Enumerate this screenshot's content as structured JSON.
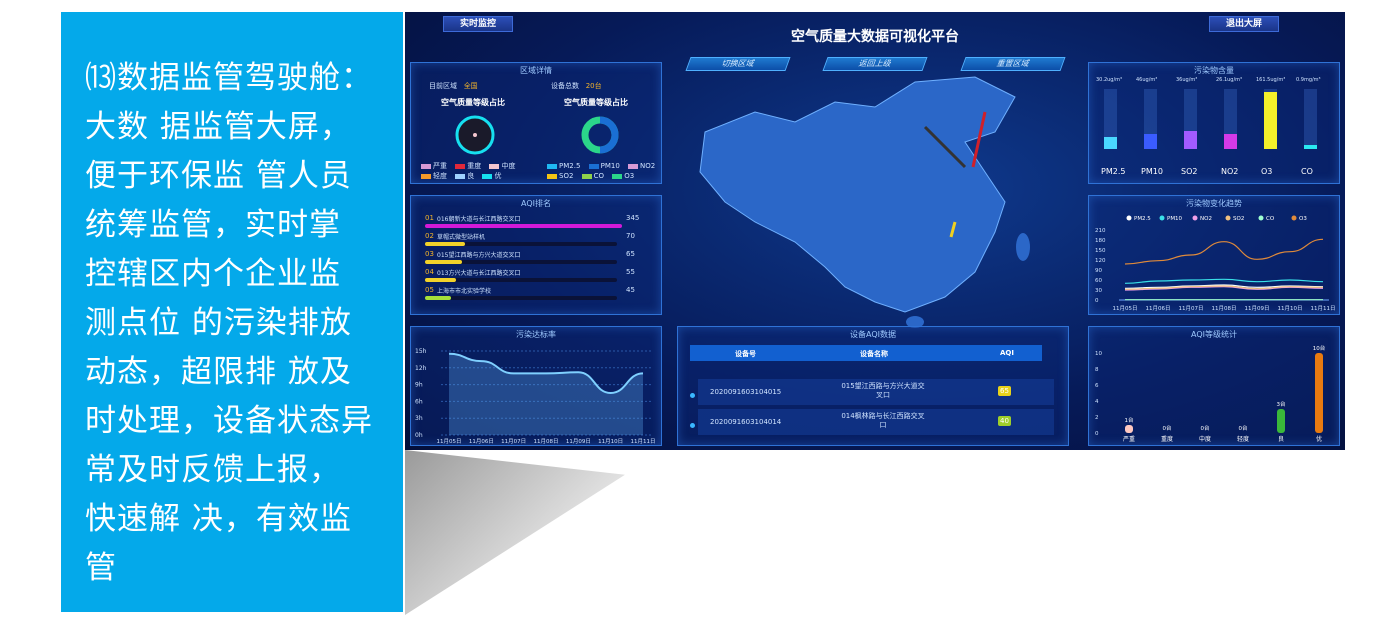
{
  "side_text": "⒀数据监管驾驶舱：\n大数 据监管大屏，\n便于环保监 管人员\n统筹监管，实时掌\n控辖区内个企业监\n测点位 的污染排放\n动态，超限排 放及\n时处理，设备状态异\n常及时反馈上报，\n快速解 决，有效监\n管",
  "dashboard": {
    "title": "空气质量大数据可视化平台",
    "btn_realtime": "实时监控",
    "btn_exit": "退出大屏",
    "nav": [
      "切换区域",
      "返回上级",
      "重置区域"
    ],
    "region": {
      "title": "区域详情",
      "region_label": "目前区域",
      "region_value": "全国",
      "device_label": "设备总数",
      "device_value": "20台",
      "chart1_title": "空气质量等级占比",
      "chart2_title": "空气质量等级占比",
      "legend1": [
        {
          "name": "严重",
          "color": "#d79ad6"
        },
        {
          "name": "重度",
          "color": "#e0283a"
        },
        {
          "name": "中度",
          "color": "#f4c6cf"
        },
        {
          "name": "轻度",
          "color": "#f39a2a"
        },
        {
          "name": "良",
          "color": "#9fd1ff"
        },
        {
          "name": "优",
          "color": "#16e0f0"
        }
      ],
      "legend2": [
        {
          "name": "PM2.5",
          "color": "#1fb8f2"
        },
        {
          "name": "PM10",
          "color": "#1a6fd4"
        },
        {
          "name": "NO2",
          "color": "#d79ad6"
        },
        {
          "name": "SO2",
          "color": "#f3c414"
        },
        {
          "name": "CO",
          "color": "#8fd24b"
        },
        {
          "name": "O3",
          "color": "#2bd68a"
        }
      ]
    },
    "aqi_rank": {
      "title": "AQI排名",
      "items": [
        {
          "rank": "01",
          "name": "016朝新大道与长江西路交叉口",
          "value": 345,
          "color": "#d21ad8"
        },
        {
          "rank": "02",
          "name": "草帽式微型站样机",
          "value": 70,
          "color": "#f2d22a"
        },
        {
          "rank": "03",
          "name": "015望江西路与方兴大道交叉口",
          "value": 65,
          "color": "#f2d22a"
        },
        {
          "rank": "04",
          "name": "013方兴大道与长江西路交叉口",
          "value": 55,
          "color": "#f2d22a"
        },
        {
          "rank": "05",
          "name": "上海市市北实验学校",
          "value": 45,
          "color": "#a6e03a"
        }
      ]
    },
    "rate": {
      "title": "污染达标率",
      "chart_data": {
        "type": "area",
        "x": [
          "11月05日",
          "11月06日",
          "11月07日",
          "11月08日",
          "11月09日",
          "11月10日",
          "11月11日"
        ],
        "values": [
          14.5,
          13.2,
          11,
          11,
          11.2,
          7.5,
          11
        ],
        "yticks": [
          "0h",
          "3h",
          "6h",
          "9h",
          "12h",
          "15h"
        ],
        "ylim": [
          0,
          15
        ]
      }
    },
    "pollutants": {
      "title": "污染物含量",
      "items": [
        {
          "name": "PM2.5",
          "value": "30.2ug/m³",
          "level": 0.2,
          "color": "#4ad8ff"
        },
        {
          "name": "PM10",
          "value": "46ug/m³",
          "level": 0.25,
          "color": "#3a5cff"
        },
        {
          "name": "SO2",
          "value": "36ug/m³",
          "level": 0.3,
          "color": "#a25bff"
        },
        {
          "name": "NO2",
          "value": "26.1ug/m³",
          "level": 0.25,
          "color": "#d43ae8"
        },
        {
          "name": "O3",
          "value": "161.5ug/m³",
          "level": 0.95,
          "color": "#f4f02a"
        },
        {
          "name": "CO",
          "value": "0.9mg/m³",
          "level": 0.05,
          "color": "#2ae8f0"
        }
      ]
    },
    "trend": {
      "title": "污染物变化趋势",
      "chart_data": {
        "type": "line",
        "x": [
          "11月05日",
          "11月06日",
          "11月07日",
          "11月08日",
          "11月09日",
          "11月10日",
          "11月11日"
        ],
        "ylim": [
          0,
          210
        ],
        "yticks": [
          0,
          30,
          60,
          90,
          120,
          150,
          180,
          210
        ],
        "series": [
          {
            "name": "PM2.5",
            "color": "#ffffff",
            "values": [
              35,
              38,
              42,
              45,
              38,
              42,
              40
            ]
          },
          {
            "name": "PM10",
            "color": "#3ae0e8",
            "values": [
              50,
              57,
              60,
              62,
              55,
              60,
              55
            ]
          },
          {
            "name": "NO2",
            "color": "#f0a0e8",
            "values": [
              30,
              33,
              38,
              40,
              32,
              38,
              35
            ]
          },
          {
            "name": "SO2",
            "color": "#f0c080",
            "values": [
              32,
              35,
              40,
              42,
              34,
              40,
              38
            ]
          },
          {
            "name": "CO",
            "color": "#9fffd0",
            "values": [
              1,
              1,
              1,
              1,
              1,
              1,
              1
            ]
          },
          {
            "name": "O3",
            "color": "#e08a3a",
            "values": [
              108,
              118,
              135,
              175,
              122,
              145,
              182
            ]
          }
        ]
      }
    },
    "device_table": {
      "title": "设备AQI数据",
      "headers": [
        "设备号",
        "设备名称",
        "AQI"
      ],
      "rows": [
        {
          "id": "2020091603104015",
          "name": "015望江西路与方兴大道交叉口",
          "aqi": "65",
          "color": "#e8d21a"
        },
        {
          "id": "2020091603104014",
          "name": "014枫林路与长江西路交叉口",
          "aqi": "40",
          "color": "#9fcf2a"
        }
      ]
    },
    "aqi_stat": {
      "title": "AQI等级统计",
      "chart_data": {
        "type": "bar",
        "categories": [
          "严重",
          "重度",
          "中度",
          "轻度",
          "良",
          "优"
        ],
        "values": [
          1,
          0,
          0,
          0,
          3,
          10
        ],
        "labels": [
          "1台",
          "0台",
          "0台",
          "0台",
          "3台",
          "10台"
        ],
        "colors": [
          "#ffc8c0",
          "#888",
          "#888",
          "#888",
          "#3ab83a",
          "#e87a10"
        ],
        "ylim": [
          0,
          10
        ],
        "yticks": [
          0,
          2,
          4,
          6,
          8,
          10
        ]
      }
    }
  }
}
